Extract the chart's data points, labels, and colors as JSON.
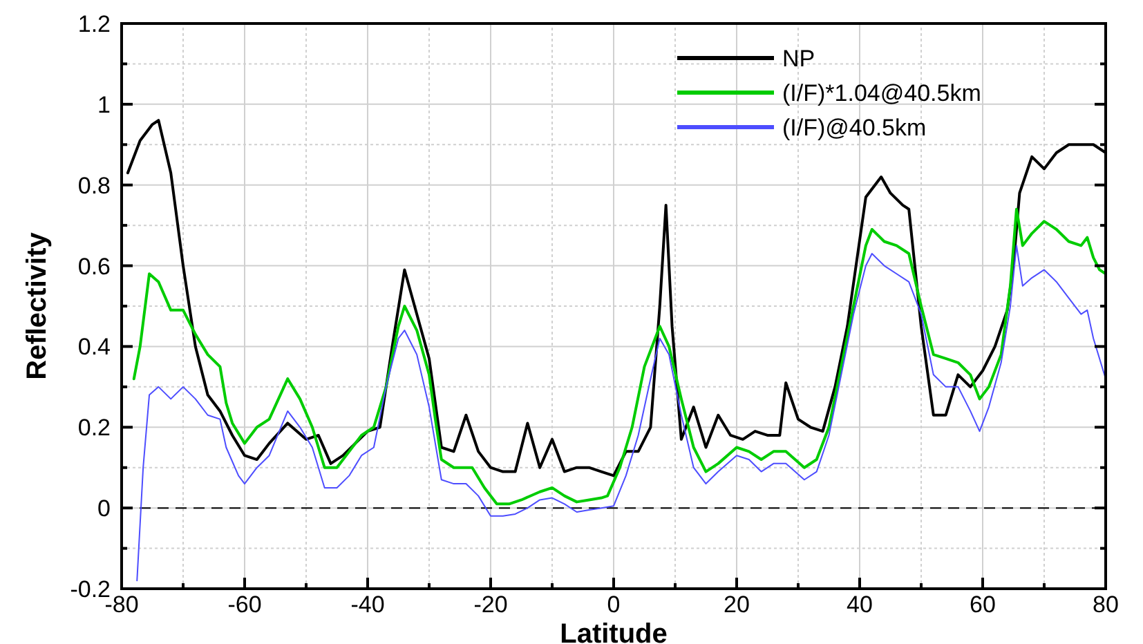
{
  "chart_data": {
    "type": "line",
    "xlabel": "Latitude",
    "ylabel": "Reflectivity",
    "xlim": [
      -80,
      80
    ],
    "ylim": [
      -0.2,
      1.2
    ],
    "xticks": [
      -80,
      {
        "value": -70,
        "label": null
      },
      -60,
      {
        "value": -50,
        "label": null
      },
      -40,
      {
        "value": -30,
        "label": null
      },
      -20,
      {
        "value": -10,
        "label": null
      },
      0,
      {
        "value": 10,
        "label": null
      },
      20,
      {
        "value": 30,
        "label": null
      },
      40,
      {
        "value": 50,
        "label": null
      },
      60,
      {
        "value": 70,
        "label": null
      },
      80
    ],
    "yticks": [
      -0.2,
      {
        "value": -0.1,
        "label": null
      },
      0,
      {
        "value": 0.1,
        "label": null
      },
      0.2,
      {
        "value": 0.3,
        "label": null
      },
      0.4,
      {
        "value": 0.5,
        "label": null
      },
      0.6,
      {
        "value": 0.7,
        "label": null
      },
      0.8,
      {
        "value": 0.9,
        "label": null
      },
      1,
      {
        "value": 1.1,
        "label": null
      },
      1.2
    ],
    "grid": true,
    "legend": "top right",
    "line_style": "solid",
    "ref_lines": [
      {
        "axis": "y",
        "value": 0,
        "color": "#000000",
        "line_style": "dashed"
      }
    ],
    "series": [
      {
        "name": "NP",
        "color": "#000000",
        "x": [
          -79,
          -77,
          -75,
          -74,
          -72,
          -70,
          -68,
          -66,
          -64,
          -62,
          -60,
          -58,
          -56,
          -53,
          -50,
          -48,
          -46,
          -44,
          -42,
          -40,
          -38,
          -36,
          -34,
          -32,
          -30,
          -28,
          -26,
          -24,
          -22,
          -20,
          -18,
          -16,
          -14,
          -12,
          -10,
          -8,
          -6,
          -4,
          -2,
          0,
          2,
          4,
          6,
          7.5,
          8.5,
          9.5,
          11,
          13,
          15,
          17,
          19,
          21,
          23,
          25,
          27,
          28,
          30,
          32,
          34,
          36,
          38,
          41,
          43.5,
          45,
          47,
          48,
          50,
          52,
          54,
          56,
          58,
          60,
          62,
          64,
          65,
          66,
          68,
          70,
          72,
          74,
          76,
          78,
          80
        ],
        "values": [
          0.83,
          0.91,
          0.95,
          0.96,
          0.83,
          0.6,
          0.4,
          0.28,
          0.24,
          0.18,
          0.13,
          0.12,
          0.16,
          0.21,
          0.17,
          0.18,
          0.11,
          0.13,
          0.16,
          0.19,
          0.2,
          0.4,
          0.59,
          0.48,
          0.37,
          0.15,
          0.14,
          0.23,
          0.14,
          0.1,
          0.09,
          0.09,
          0.21,
          0.1,
          0.17,
          0.09,
          0.1,
          0.1,
          0.09,
          0.08,
          0.14,
          0.14,
          0.2,
          0.5,
          0.75,
          0.45,
          0.17,
          0.25,
          0.15,
          0.23,
          0.18,
          0.17,
          0.19,
          0.18,
          0.18,
          0.31,
          0.22,
          0.2,
          0.19,
          0.3,
          0.45,
          0.77,
          0.82,
          0.78,
          0.75,
          0.74,
          0.45,
          0.23,
          0.23,
          0.33,
          0.3,
          0.34,
          0.4,
          0.49,
          0.6,
          0.78,
          0.87,
          0.84,
          0.88,
          0.9,
          0.9,
          0.9,
          0.88
        ]
      },
      {
        "name": "(I/F)*1.04@40.5km",
        "color": "#00cc00",
        "x": [
          -78,
          -77,
          -75.5,
          -74,
          -72,
          -70,
          -68,
          -66,
          -64,
          -63,
          -62,
          -60,
          -58,
          -56,
          -53,
          -51,
          -49,
          -47,
          -45,
          -43,
          -41,
          -39,
          -37,
          -35,
          -34,
          -32,
          -30,
          -29,
          -28,
          -26,
          -23,
          -21,
          -19,
          -17,
          -15,
          -12,
          -10,
          -8,
          -6,
          -4,
          -2,
          -1,
          1,
          3,
          5,
          7.5,
          9,
          11,
          13,
          15,
          17,
          20,
          22,
          24,
          26,
          28,
          31,
          33,
          35,
          37,
          39,
          41,
          42,
          44,
          46,
          48,
          50,
          52,
          54,
          56,
          58,
          59.5,
          61,
          63,
          64.5,
          65.5,
          66.5,
          68,
          70,
          72,
          74,
          76,
          77,
          78,
          79,
          80
        ],
        "values": [
          0.32,
          0.4,
          0.58,
          0.56,
          0.49,
          0.49,
          0.43,
          0.38,
          0.35,
          0.26,
          0.21,
          0.16,
          0.2,
          0.22,
          0.32,
          0.27,
          0.2,
          0.1,
          0.1,
          0.14,
          0.18,
          0.2,
          0.3,
          0.45,
          0.5,
          0.44,
          0.33,
          0.22,
          0.12,
          0.1,
          0.1,
          0.05,
          0.01,
          0.01,
          0.02,
          0.04,
          0.05,
          0.03,
          0.015,
          0.02,
          0.025,
          0.03,
          0.1,
          0.2,
          0.35,
          0.45,
          0.4,
          0.27,
          0.15,
          0.09,
          0.11,
          0.15,
          0.14,
          0.12,
          0.14,
          0.14,
          0.1,
          0.12,
          0.2,
          0.35,
          0.5,
          0.65,
          0.69,
          0.66,
          0.65,
          0.63,
          0.5,
          0.38,
          0.37,
          0.36,
          0.33,
          0.27,
          0.3,
          0.38,
          0.55,
          0.74,
          0.65,
          0.68,
          0.71,
          0.69,
          0.66,
          0.65,
          0.67,
          0.62,
          0.59,
          0.58
        ]
      },
      {
        "name": "(I/F)@40.5km",
        "color": "#4d4dff",
        "x": [
          -77.5,
          -76.5,
          -75.5,
          -74,
          -72,
          -70,
          -68,
          -66,
          -64,
          -63,
          -61,
          -60,
          -58,
          -56,
          -53,
          -51,
          -49,
          -47,
          -45,
          -43,
          -41,
          -39,
          -37,
          -35,
          -34,
          -32,
          -30,
          -28,
          -26,
          -24,
          -22,
          -20,
          -18,
          -16,
          -14,
          -12,
          -10,
          -8,
          -6,
          -4,
          -2,
          0,
          2,
          4,
          6,
          7.5,
          9,
          11,
          13,
          15,
          17,
          20,
          22,
          24,
          26,
          28,
          31,
          33,
          35,
          37,
          39,
          41,
          42,
          44,
          46,
          48,
          50,
          52,
          54,
          56,
          58,
          59.5,
          61,
          63,
          64.5,
          65.5,
          66.5,
          68,
          70,
          72,
          74,
          76,
          77,
          78,
          79,
          80
        ],
        "values": [
          -0.18,
          0.1,
          0.28,
          0.3,
          0.27,
          0.3,
          0.27,
          0.23,
          0.22,
          0.15,
          0.08,
          0.06,
          0.1,
          0.13,
          0.24,
          0.2,
          0.15,
          0.05,
          0.05,
          0.08,
          0.13,
          0.15,
          0.3,
          0.42,
          0.44,
          0.38,
          0.25,
          0.07,
          0.06,
          0.06,
          0.03,
          -0.02,
          -0.02,
          -0.015,
          0,
          0.02,
          0.025,
          0.01,
          -0.01,
          -0.005,
          0,
          0.005,
          0.08,
          0.18,
          0.32,
          0.42,
          0.38,
          0.23,
          0.1,
          0.06,
          0.09,
          0.13,
          0.12,
          0.09,
          0.11,
          0.11,
          0.07,
          0.09,
          0.18,
          0.33,
          0.48,
          0.6,
          0.63,
          0.6,
          0.58,
          0.56,
          0.48,
          0.33,
          0.3,
          0.3,
          0.24,
          0.19,
          0.25,
          0.36,
          0.5,
          0.65,
          0.55,
          0.57,
          0.59,
          0.56,
          0.52,
          0.48,
          0.49,
          0.42,
          0.37,
          0.32
        ]
      }
    ]
  }
}
